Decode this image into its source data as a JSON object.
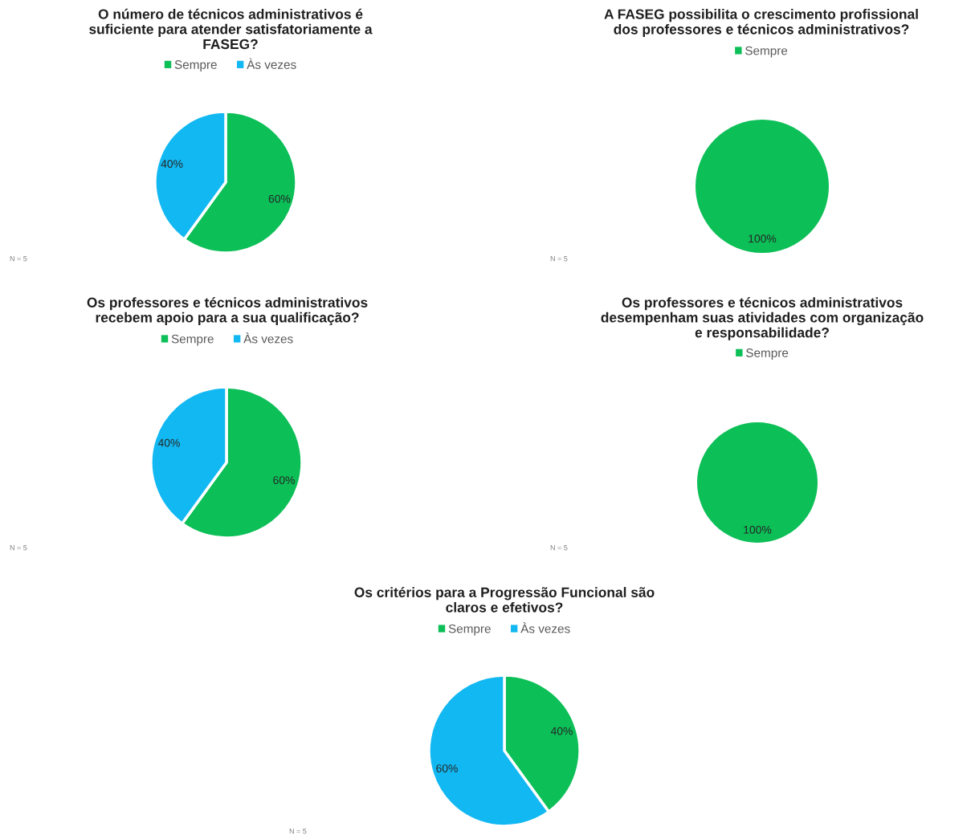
{
  "chart_data": [
    {
      "type": "pie",
      "title": "O número de técnicos administrativos é\nsuficiente para atender satisfatoriamente a\nFASEG?",
      "categories": [
        "Sempre",
        "Às vezes"
      ],
      "values": [
        60,
        40
      ],
      "colors": [
        "#0cbf57",
        "#12b8f2"
      ],
      "value_labels": [
        "60%",
        "40%"
      ],
      "legend": "top",
      "annotations": [
        "N = 5"
      ]
    },
    {
      "type": "pie",
      "title": "A FASEG possibilita o crescimento profissional\ndos professores e técnicos administrativos?",
      "categories": [
        "Sempre"
      ],
      "values": [
        100
      ],
      "colors": [
        "#0cbf57"
      ],
      "value_labels": [
        "100%"
      ],
      "legend": "top",
      "annotations": [
        "N = 5"
      ]
    },
    {
      "type": "pie",
      "title": "Os professores e técnicos administrativos\nrecebem apoio para a sua qualificação?",
      "categories": [
        "Sempre",
        "Às vezes"
      ],
      "values": [
        60,
        40
      ],
      "colors": [
        "#0cbf57",
        "#12b8f2"
      ],
      "value_labels": [
        "60%",
        "40%"
      ],
      "legend": "top",
      "annotations": [
        "N = 5"
      ]
    },
    {
      "type": "pie",
      "title": "Os professores e técnicos administrativos\ndesempenham suas atividades com organização\ne responsabilidade?",
      "categories": [
        "Sempre"
      ],
      "values": [
        100
      ],
      "colors": [
        "#0cbf57"
      ],
      "value_labels": [
        "100%"
      ],
      "legend": "top",
      "annotations": [
        "N = 5"
      ]
    },
    {
      "type": "pie",
      "title": "Os critérios para a Progressão Funcional são\nclaros e efetivos?",
      "categories": [
        "Sempre",
        "Às vezes"
      ],
      "values": [
        40,
        60
      ],
      "colors": [
        "#0cbf57",
        "#12b8f2"
      ],
      "value_labels": [
        "40%",
        "60%"
      ],
      "legend": "top",
      "annotations": [
        "N = 5"
      ]
    }
  ]
}
